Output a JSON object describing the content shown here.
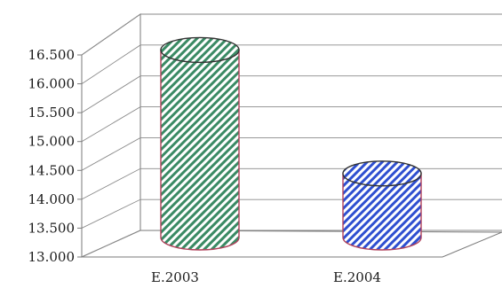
{
  "chart_data": {
    "type": "bar",
    "categories": [
      "E.2003",
      "E.2004"
    ],
    "values": [
      16150,
      14150
    ],
    "ylim": [
      13000,
      16500
    ],
    "yticks": [
      "13.000",
      "13.500",
      "14.000",
      "14.500",
      "15.000",
      "15.500",
      "16.000",
      "16.500"
    ],
    "ytick_values": [
      13000,
      13500,
      14000,
      14500,
      15000,
      15500,
      16000,
      16500
    ],
    "grid": true,
    "bar_shape": "cylinder",
    "bar_colors": [
      "#3a8a64",
      "#2e4fd0"
    ],
    "bar_fill": "diagonal-hatch"
  }
}
